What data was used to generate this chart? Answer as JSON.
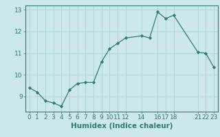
{
  "x": [
    0,
    1,
    2,
    3,
    4,
    5,
    6,
    7,
    8,
    9,
    10,
    11,
    12,
    14,
    15,
    16,
    17,
    18,
    21,
    22,
    23
  ],
  "y": [
    9.4,
    9.2,
    8.8,
    8.7,
    8.55,
    9.3,
    9.6,
    9.65,
    9.65,
    10.6,
    11.2,
    11.45,
    11.7,
    11.8,
    11.7,
    12.9,
    12.6,
    12.75,
    11.05,
    11.0,
    10.35
  ],
  "line_color": "#2e7d6e",
  "marker_color": "#2e7d6e",
  "bg_color": "#cce8e8",
  "grid_color": "#aed4d4",
  "xlabel": "Humidex (Indice chaleur)",
  "xlim": [
    -0.5,
    23.5
  ],
  "ylim": [
    8.3,
    13.2
  ],
  "xticks": [
    0,
    1,
    2,
    3,
    4,
    5,
    6,
    7,
    8,
    9,
    10,
    11,
    12,
    14,
    16,
    17,
    18,
    21,
    22,
    23
  ],
  "yticks": [
    9,
    10,
    11,
    12,
    13
  ],
  "tick_fontsize": 6.5,
  "xlabel_fontsize": 7.5
}
